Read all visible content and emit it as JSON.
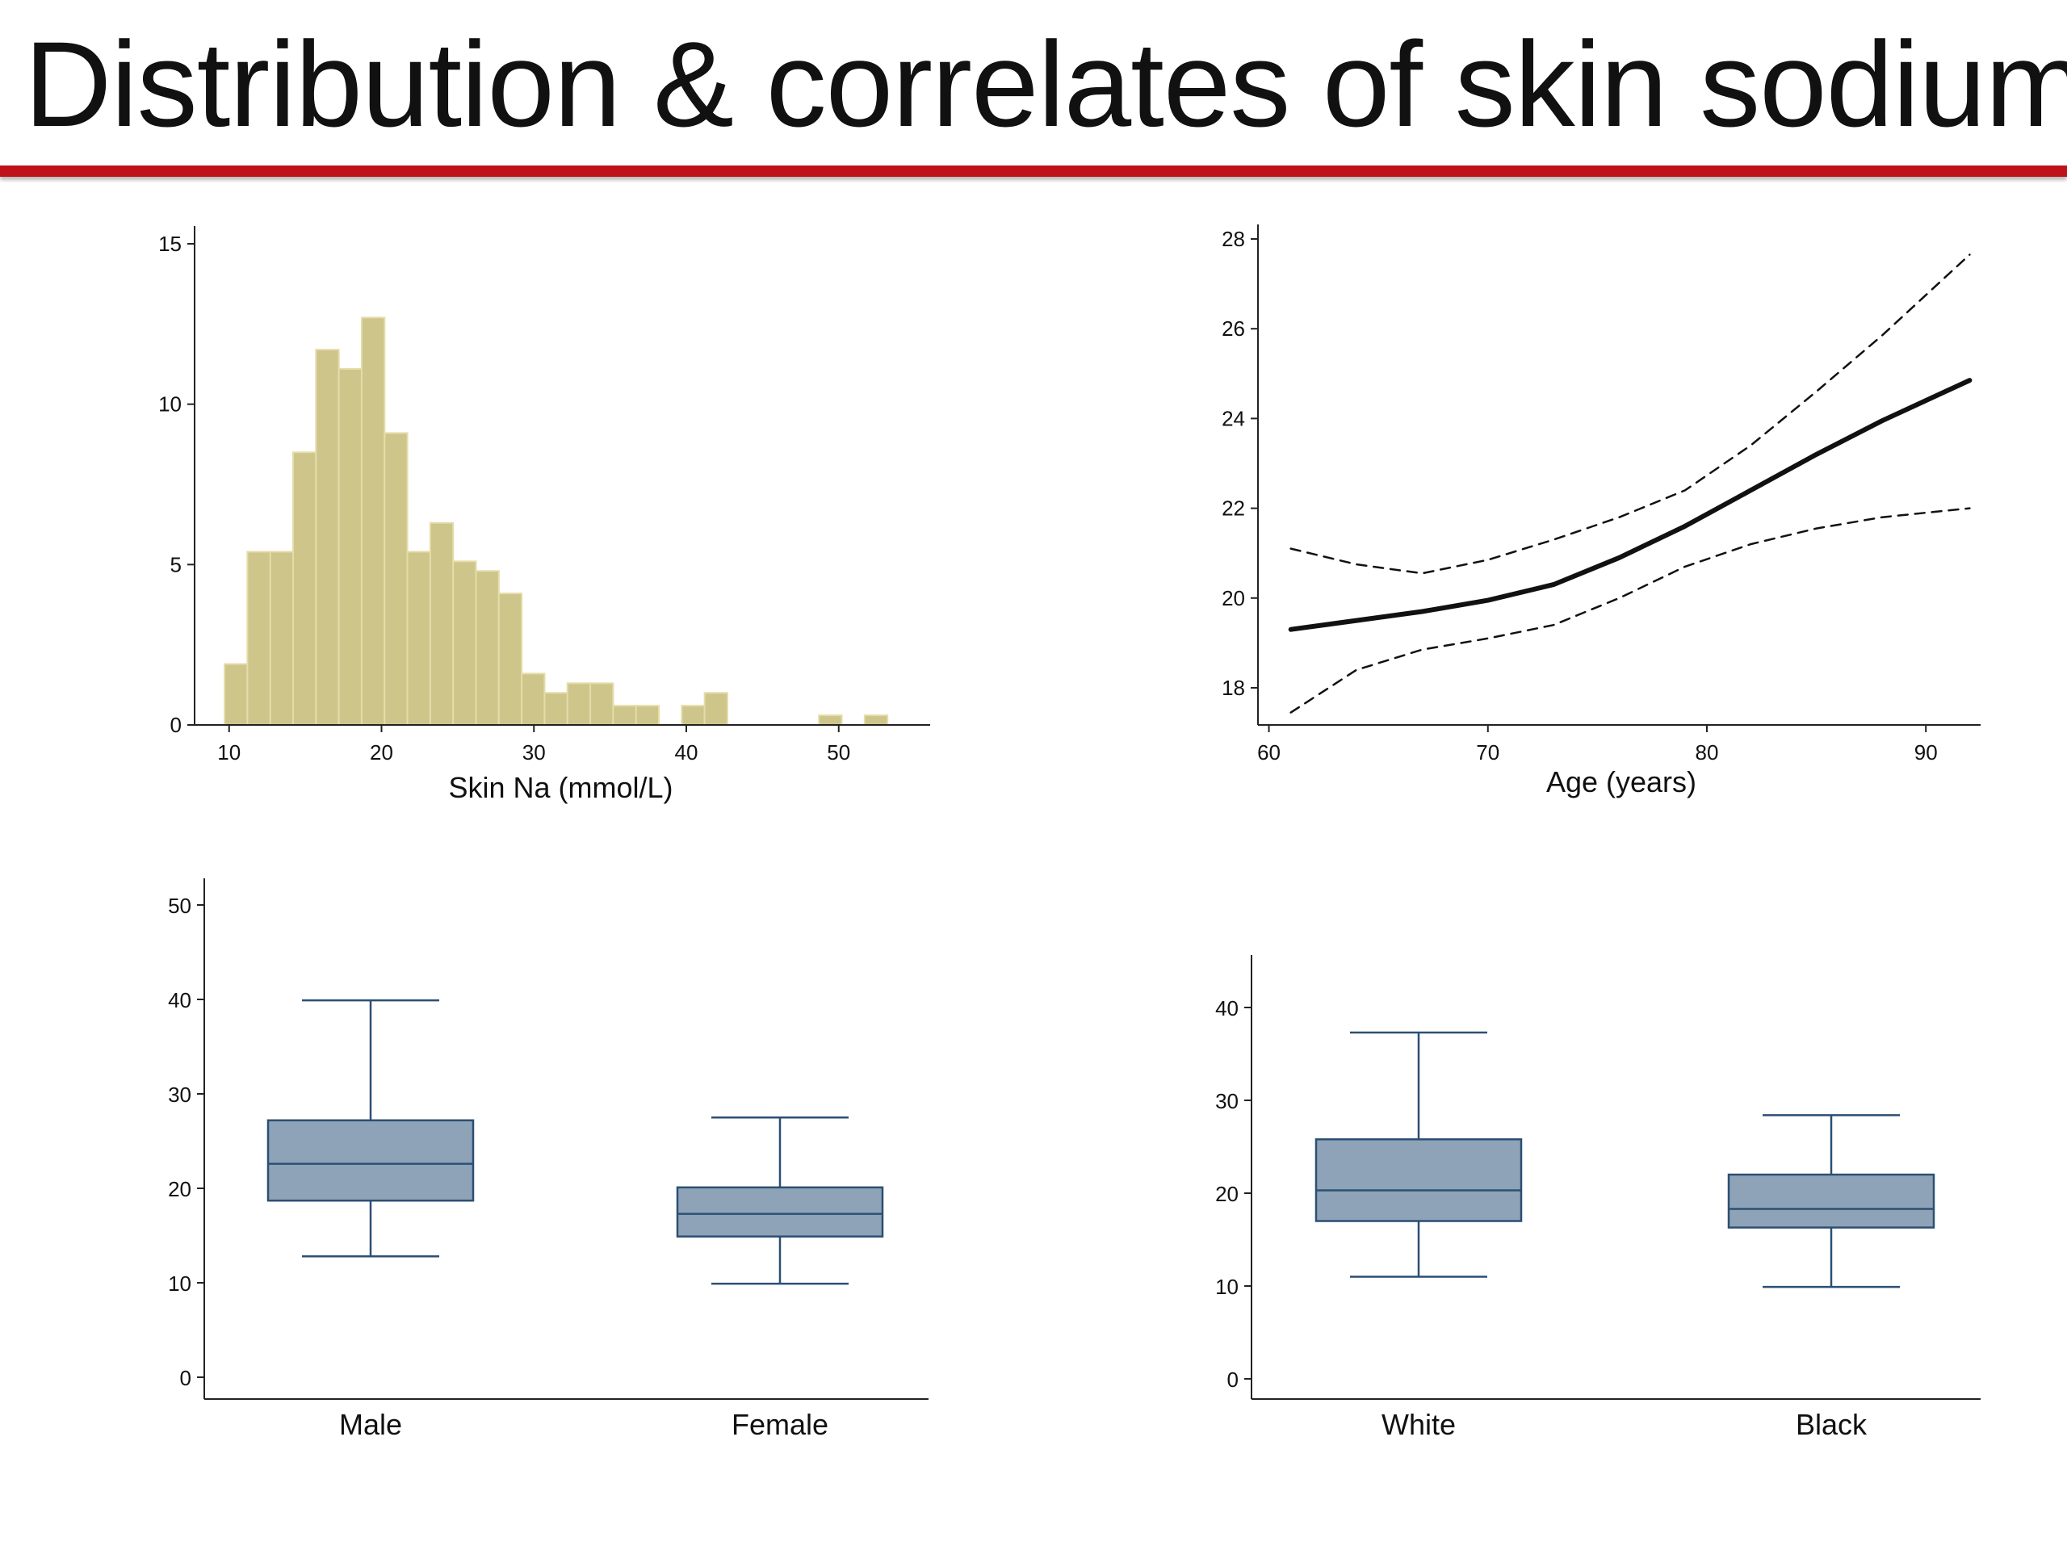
{
  "slide": {
    "title": "Distribution & correlates of skin sodium"
  },
  "colors": {
    "accent_rule": "#c0111a",
    "hist_fill": "#cec58a",
    "hist_stroke": "#e4dcaa",
    "box_fill": "#8ea3b8",
    "box_stroke": "#2c4f73",
    "line": "#111111"
  },
  "chart_data": [
    {
      "type": "bar",
      "subtype": "histogram",
      "title": "",
      "xlabel": "Skin Na (mmol/L)",
      "ylabel": "",
      "xlim": [
        8,
        56
      ],
      "ylim": [
        0,
        15
      ],
      "xticks": [
        "10",
        "20",
        "30",
        "40",
        "50"
      ],
      "yticks": [
        "0",
        "5",
        "10",
        "15"
      ],
      "bin_width": 1.5,
      "bins": [
        {
          "x0": 9.7,
          "value": 1.9
        },
        {
          "x0": 11.2,
          "value": 5.4
        },
        {
          "x0": 12.7,
          "value": 5.4
        },
        {
          "x0": 14.2,
          "value": 8.5
        },
        {
          "x0": 15.7,
          "value": 11.7
        },
        {
          "x0": 17.2,
          "value": 11.1
        },
        {
          "x0": 18.7,
          "value": 12.7
        },
        {
          "x0": 20.2,
          "value": 9.1
        },
        {
          "x0": 21.7,
          "value": 5.4
        },
        {
          "x0": 23.2,
          "value": 6.3
        },
        {
          "x0": 24.7,
          "value": 5.1
        },
        {
          "x0": 26.2,
          "value": 4.8
        },
        {
          "x0": 27.7,
          "value": 4.1
        },
        {
          "x0": 29.2,
          "value": 1.6
        },
        {
          "x0": 30.7,
          "value": 1.0
        },
        {
          "x0": 32.2,
          "value": 1.3
        },
        {
          "x0": 33.7,
          "value": 1.3
        },
        {
          "x0": 35.2,
          "value": 0.6
        },
        {
          "x0": 36.7,
          "value": 0.6
        },
        {
          "x0": 38.2,
          "value": 0
        },
        {
          "x0": 39.7,
          "value": 0.6
        },
        {
          "x0": 41.2,
          "value": 1.0
        },
        {
          "x0": 48.7,
          "value": 0.3
        },
        {
          "x0": 51.7,
          "value": 0.3
        }
      ]
    },
    {
      "type": "line",
      "title": "",
      "xlabel": "Age (years)",
      "ylabel": "",
      "xlim": [
        59.5,
        92.5
      ],
      "ylim": [
        17.2,
        28
      ],
      "xticks": [
        "60",
        "70",
        "80",
        "90"
      ],
      "yticks": [
        "18",
        "20",
        "22",
        "24",
        "26",
        "28"
      ],
      "series": [
        {
          "style": "solid",
          "x": [
            61,
            64,
            67,
            70,
            73,
            76,
            79,
            82,
            85,
            88,
            92
          ],
          "values": [
            19.3,
            19.5,
            19.7,
            19.95,
            20.3,
            20.9,
            21.6,
            22.4,
            23.2,
            23.95,
            24.85
          ]
        },
        {
          "style": "dashed",
          "x": [
            61,
            64,
            67,
            70,
            73,
            76,
            79,
            82,
            85,
            88,
            92
          ],
          "values": [
            21.1,
            20.75,
            20.55,
            20.85,
            21.3,
            21.8,
            22.4,
            23.4,
            24.6,
            25.85,
            27.65
          ]
        },
        {
          "style": "dashed",
          "x": [
            61,
            64,
            67,
            70,
            73,
            76,
            79,
            82,
            85,
            88,
            92
          ],
          "values": [
            17.45,
            18.4,
            18.85,
            19.1,
            19.4,
            20.0,
            20.7,
            21.2,
            21.55,
            21.8,
            22.0
          ]
        }
      ]
    },
    {
      "type": "box",
      "title": "",
      "xlabel": "",
      "ylabel": "",
      "ylim": [
        -2,
        52
      ],
      "yticks": [
        "0",
        "10",
        "20",
        "30",
        "40",
        "50"
      ],
      "categories": [
        "Male",
        "Female"
      ],
      "boxes": [
        {
          "category": "Male",
          "min": 12.8,
          "q1": 18.7,
          "median": 22.6,
          "q3": 27.2,
          "max": 39.9
        },
        {
          "category": "Female",
          "min": 9.9,
          "q1": 14.9,
          "median": 17.3,
          "q3": 20.1,
          "max": 27.5
        }
      ]
    },
    {
      "type": "box",
      "title": "",
      "xlabel": "",
      "ylabel": "",
      "ylim": [
        -2,
        48
      ],
      "yticks": [
        "0",
        "10",
        "20",
        "30",
        "40"
      ],
      "categories": [
        "White",
        "Black"
      ],
      "boxes": [
        {
          "category": "White",
          "min": 11.0,
          "q1": 17.0,
          "median": 20.3,
          "q3": 25.8,
          "max": 37.3
        },
        {
          "category": "Black",
          "min": 9.9,
          "q1": 16.3,
          "median": 18.3,
          "q3": 22.0,
          "max": 28.4
        }
      ]
    }
  ]
}
